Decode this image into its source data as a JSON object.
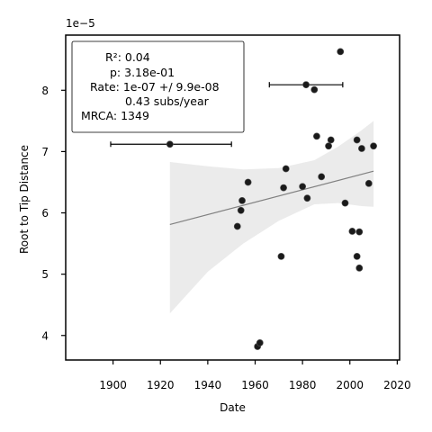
{
  "chart_data": {
    "type": "scatter",
    "title": "",
    "xlabel": "Date",
    "ylabel": "Root to Tip Distance",
    "y_multiplier_label": "1e−5",
    "xlim": [
      1880,
      2021
    ],
    "ylim": [
      3.6,
      8.9
    ],
    "x_ticks": [
      1900,
      1920,
      1940,
      1960,
      1980,
      2000,
      2020
    ],
    "x_tick_labels": [
      "1900",
      "1920",
      "1940",
      "1960",
      "1980",
      "2000",
      "2020"
    ],
    "y_ticks": [
      4,
      5,
      6,
      7,
      8
    ],
    "y_tick_labels": [
      "4",
      "5",
      "6",
      "7",
      "8"
    ],
    "grid": false,
    "legend": {
      "placement": "top-left",
      "lines": [
        "R²: 0.04",
        "p: 3.18e-01",
        "Rate: 1e-07 +/ 9.9e-08",
        "0.43 subs/year",
        "MRCA: 1349"
      ]
    },
    "points": [
      {
        "x": 1924,
        "y": 7.12
      },
      {
        "x": 1952.5,
        "y": 5.78
      },
      {
        "x": 1954,
        "y": 6.04
      },
      {
        "x": 1954.5,
        "y": 6.2
      },
      {
        "x": 1957,
        "y": 6.5
      },
      {
        "x": 1961,
        "y": 3.82
      },
      {
        "x": 1962,
        "y": 3.88
      },
      {
        "x": 1971,
        "y": 5.29
      },
      {
        "x": 1972,
        "y": 6.41
      },
      {
        "x": 1973,
        "y": 6.72
      },
      {
        "x": 1980,
        "y": 6.43
      },
      {
        "x": 1981.5,
        "y": 8.09
      },
      {
        "x": 1982,
        "y": 6.24
      },
      {
        "x": 1985,
        "y": 8.01
      },
      {
        "x": 1986,
        "y": 7.25
      },
      {
        "x": 1988,
        "y": 6.59
      },
      {
        "x": 1991,
        "y": 7.09
      },
      {
        "x": 1992,
        "y": 7.19
      },
      {
        "x": 1996,
        "y": 8.63
      },
      {
        "x": 1998,
        "y": 6.16
      },
      {
        "x": 2001,
        "y": 5.7
      },
      {
        "x": 2003,
        "y": 5.29
      },
      {
        "x": 2003,
        "y": 7.19
      },
      {
        "x": 2004,
        "y": 5.69
      },
      {
        "x": 2004,
        "y": 5.1
      },
      {
        "x": 2005,
        "y": 7.05
      },
      {
        "x": 2008,
        "y": 6.48
      },
      {
        "x": 2010,
        "y": 7.09
      }
    ],
    "error_bars": [
      {
        "x": 1924,
        "y": 7.12,
        "xmin": 1899,
        "xmax": 1950
      },
      {
        "x": 1981.5,
        "y": 8.09,
        "xmin": 1966,
        "xmax": 1997
      }
    ],
    "regression": {
      "x": [
        1924,
        2010
      ],
      "y": [
        5.81,
        6.68
      ]
    },
    "confidence_band": {
      "x": [
        1924,
        1940,
        1955,
        1970,
        1985,
        1995,
        2005,
        2010
      ],
      "upper": [
        6.83,
        6.76,
        6.71,
        6.73,
        6.86,
        7.08,
        7.35,
        7.5
      ],
      "lower": [
        4.36,
        5.04,
        5.5,
        5.87,
        6.14,
        6.16,
        6.11,
        6.1
      ]
    },
    "colors": {
      "points": "#1a1a1a",
      "regression": "#808080",
      "band": "#ebebeb",
      "axis": "#000000"
    }
  }
}
